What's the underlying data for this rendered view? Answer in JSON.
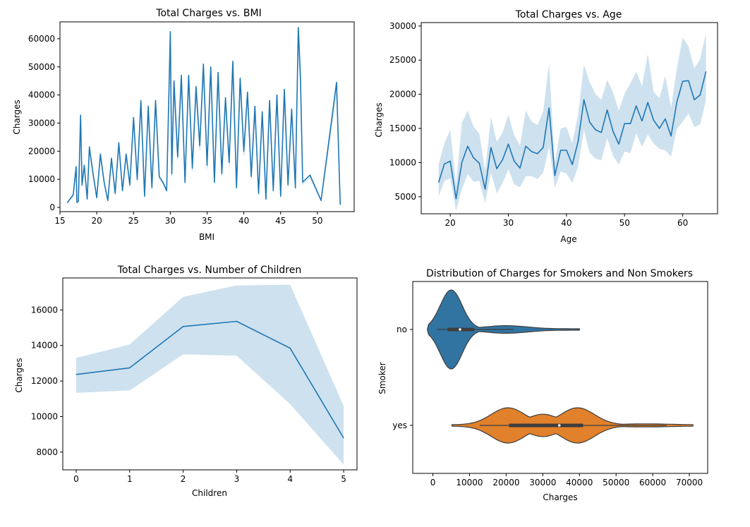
{
  "colors": {
    "line": "#1f77b4",
    "band": "#1f77b4",
    "nonsmoker": "#3274a1",
    "smoker": "#e1812c",
    "box": "#3d3d3d"
  },
  "chart_data": [
    {
      "type": "line",
      "title": "Total Charges vs. BMI",
      "xlabel": "BMI",
      "ylabel": "Charges",
      "xlim": [
        15,
        55
      ],
      "ylim": [
        -1500,
        66000
      ],
      "xticks": [
        15,
        20,
        25,
        30,
        35,
        40,
        45,
        50
      ],
      "yticks": [
        0,
        10000,
        20000,
        30000,
        40000,
        50000,
        60000
      ],
      "x": [
        16.0,
        16.8,
        17.2,
        17.3,
        17.5,
        17.8,
        18.0,
        18.3,
        18.7,
        19.0,
        19.5,
        20.0,
        20.5,
        21.0,
        21.5,
        22.0,
        22.5,
        23.0,
        23.5,
        24.0,
        24.5,
        25.0,
        25.5,
        26.0,
        26.5,
        27.0,
        27.5,
        28.0,
        28.5,
        29.0,
        29.5,
        30.0,
        30.2,
        30.5,
        31.0,
        31.5,
        32.0,
        32.5,
        33.0,
        33.5,
        34.0,
        34.5,
        35.0,
        35.5,
        36.0,
        36.5,
        37.0,
        37.5,
        38.0,
        38.5,
        39.0,
        39.5,
        40.0,
        40.5,
        41.0,
        41.5,
        42.0,
        42.5,
        43.0,
        43.5,
        44.0,
        44.5,
        45.0,
        45.5,
        46.0,
        46.5,
        47.0,
        47.4,
        47.7,
        48.0,
        49.0,
        50.5,
        52.6,
        53.1
      ],
      "y": [
        1700,
        4500,
        14500,
        1800,
        2200,
        32800,
        8000,
        15000,
        3000,
        21500,
        12000,
        3500,
        19000,
        9000,
        2500,
        17500,
        5000,
        23000,
        6000,
        19000,
        8000,
        32000,
        10000,
        38000,
        4000,
        36000,
        7000,
        38000,
        11000,
        9000,
        6000,
        62500,
        12000,
        45000,
        18000,
        47000,
        9000,
        47000,
        14000,
        43000,
        22000,
        51000,
        15000,
        50000,
        9000,
        48000,
        12000,
        39000,
        16000,
        52000,
        7000,
        46000,
        20000,
        41000,
        11000,
        36000,
        5000,
        34000,
        3000,
        38000,
        6000,
        40000,
        4000,
        42000,
        8000,
        35000,
        7000,
        64000,
        46000,
        9000,
        11500,
        2500,
        44500,
        1000
      ]
    },
    {
      "type": "line",
      "title": "Total Charges vs. Age",
      "xlabel": "Age",
      "ylabel": "Charges",
      "xlim": [
        15,
        66
      ],
      "ylim": [
        2500,
        30500
      ],
      "xticks": [
        20,
        30,
        40,
        50,
        60
      ],
      "yticks": [
        5000,
        10000,
        15000,
        20000,
        25000,
        30000
      ],
      "x": [
        18,
        19,
        20,
        21,
        22,
        23,
        24,
        25,
        26,
        27,
        28,
        29,
        30,
        31,
        32,
        33,
        34,
        35,
        36,
        37,
        38,
        39,
        40,
        41,
        42,
        43,
        44,
        45,
        46,
        47,
        48,
        49,
        50,
        51,
        52,
        53,
        54,
        55,
        56,
        57,
        58,
        59,
        60,
        61,
        62,
        63,
        64
      ],
      "y": [
        7100,
        9800,
        10200,
        4700,
        10000,
        12400,
        10700,
        9900,
        6100,
        12200,
        9100,
        10400,
        12700,
        10200,
        9200,
        12400,
        11600,
        11300,
        12200,
        18000,
        8100,
        11800,
        11800,
        9700,
        13100,
        19200,
        15900,
        14800,
        14400,
        17700,
        14600,
        12700,
        15700,
        15700,
        18300,
        16100,
        18800,
        16200,
        15000,
        16400,
        13900,
        18900,
        21900,
        22000,
        19200,
        19900,
        23300
      ],
      "upper": [
        9800,
        12800,
        14800,
        6800,
        15800,
        17600,
        15300,
        14200,
        8800,
        16700,
        13000,
        14400,
        17000,
        14000,
        12500,
        17600,
        16000,
        15500,
        17500,
        24500,
        10000,
        15000,
        15200,
        12800,
        17100,
        24300,
        21800,
        20000,
        19200,
        22100,
        20300,
        17600,
        20100,
        21600,
        23300,
        21200,
        25900,
        20400,
        19400,
        22700,
        18100,
        23800,
        28300,
        27000,
        23800,
        25100,
        28900
      ],
      "lower": [
        5000,
        7300,
        7700,
        2900,
        6100,
        8300,
        7200,
        7300,
        4000,
        8500,
        5500,
        7000,
        9000,
        6800,
        6400,
        8000,
        8000,
        7600,
        8500,
        12300,
        6300,
        8700,
        8400,
        7000,
        9400,
        14800,
        11400,
        10600,
        10300,
        13600,
        11000,
        9700,
        11600,
        11400,
        14300,
        12300,
        14100,
        12800,
        12000,
        11800,
        10900,
        14900,
        16000,
        17200,
        15200,
        15600,
        19100
      ]
    },
    {
      "type": "line",
      "title": "Total Charges vs. Number of Children",
      "xlabel": "Children",
      "ylabel": "Charges",
      "xlim": [
        -0.25,
        5.25
      ],
      "ylim": [
        7000,
        17800
      ],
      "xticks": [
        0,
        1,
        2,
        3,
        4,
        5
      ],
      "yticks": [
        8000,
        10000,
        12000,
        14000,
        16000
      ],
      "x": [
        0,
        1,
        2,
        3,
        4,
        5
      ],
      "y": [
        12370,
        12740,
        15070,
        15360,
        13850,
        8790
      ],
      "upper": [
        13300,
        14050,
        16740,
        17380,
        17420,
        10600
      ],
      "lower": [
        11330,
        11470,
        13500,
        13430,
        10700,
        7300
      ]
    },
    {
      "type": "violin",
      "title": "Distribution of Charges for Smokers and Non Smokers",
      "xlabel": "Charges",
      "ylabel": "Smoker",
      "xlim": [
        -5500,
        75000
      ],
      "categories": [
        "no",
        "yes"
      ],
      "xticks": [
        0,
        10000,
        20000,
        30000,
        40000,
        50000,
        60000,
        70000
      ],
      "series": [
        {
          "name": "no",
          "q1": 4000,
          "median": 7400,
          "q3": 11300,
          "whisker_low": 1100,
          "whisker_high": 22000,
          "xmin": -1500,
          "xmax": 40000
        },
        {
          "name": "yes",
          "q1": 20800,
          "median": 34500,
          "q3": 41000,
          "whisker_low": 12800,
          "whisker_high": 63800,
          "xmin": 5200,
          "xmax": 71000
        }
      ]
    }
  ]
}
